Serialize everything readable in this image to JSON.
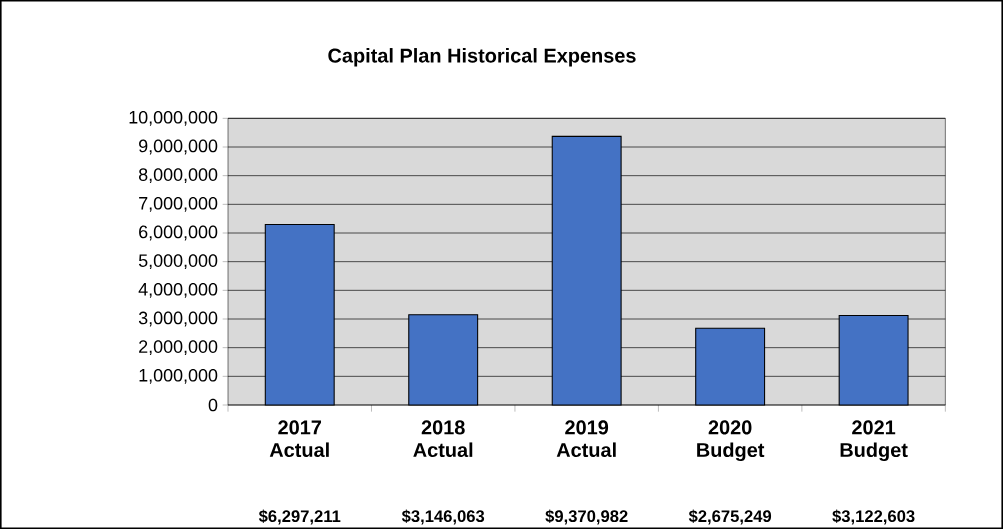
{
  "chart_data": {
    "type": "bar",
    "title": "Capital Plan Historical Expenses",
    "categories": [
      "2017 Actual",
      "2018 Actual",
      "2019 Actual",
      "2020 Budget",
      "2021 Budget"
    ],
    "values": [
      6297211,
      3146063,
      9370982,
      2675249,
      3122603
    ],
    "value_labels": [
      "$6,297,211",
      "$3,146,063",
      "$9,370,982",
      "$2,675,249",
      "$3,122,603"
    ],
    "color": "#4472c4",
    "ylim": [
      0,
      10000000
    ],
    "yticks": [
      0,
      {
        "value": 1000000,
        "label": "1,000,000"
      },
      {
        "value": 2000000,
        "label": "2,000,000"
      },
      {
        "value": 3000000,
        "label": "3,000,000"
      },
      {
        "value": 4000000,
        "label": "4,000,000"
      },
      {
        "value": 5000000,
        "label": "5,000,000"
      },
      {
        "value": 6000000,
        "label": "6,000,000"
      },
      {
        "value": 7000000,
        "label": "7,000,000"
      },
      {
        "value": 8000000,
        "label": "8,000,000"
      },
      {
        "value": 9000000,
        "label": "9,000,000"
      },
      {
        "value": 10000000,
        "label": "10,000,000"
      }
    ],
    "grid": "y"
  }
}
